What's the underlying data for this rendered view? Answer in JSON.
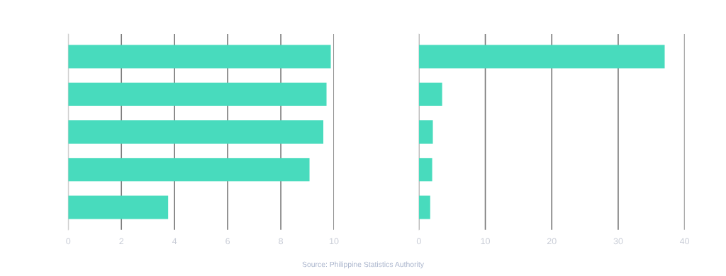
{
  "chart_data": [
    {
      "type": "bar",
      "orientation": "horizontal",
      "categories": [
        null,
        null,
        null,
        null,
        null
      ],
      "values": [
        9.88,
        9.72,
        9.6,
        9.08,
        3.76
      ],
      "color": "#48dbbd",
      "xlim": [
        0,
        10
      ],
      "xticks": [
        0,
        2,
        4,
        6,
        8,
        10
      ],
      "grid": "x",
      "tick_labels": "x"
    },
    {
      "type": "bar",
      "orientation": "horizontal",
      "categories": [
        null,
        null,
        null,
        null,
        null
      ],
      "values": [
        37.0,
        3.5,
        2.1,
        2.0,
        1.7
      ],
      "color": "#48dbbd",
      "xlim": [
        0,
        40
      ],
      "xticks": [
        0,
        10,
        20,
        30,
        40
      ],
      "grid": "x",
      "tick_labels": "x",
      "annotations": [
        "Source: Philippine Statistics Authority"
      ]
    }
  ]
}
